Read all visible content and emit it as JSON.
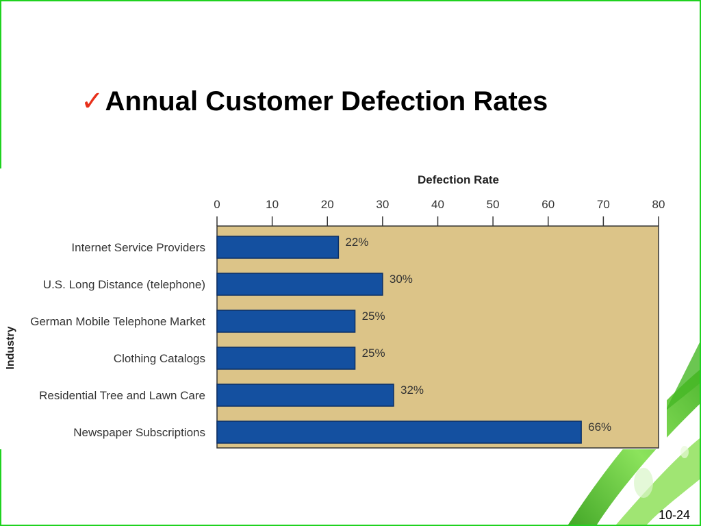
{
  "slide": {
    "title": "Annual Customer Defection Rates",
    "check_icon": "checkmark-icon",
    "number": "10-24"
  },
  "colors": {
    "bar": "#1450a0",
    "plot_bg": "#dcc488",
    "check": "#e8301a",
    "border": "#1fd21f",
    "leaf": "#5ccc2e"
  },
  "chart_data": {
    "type": "bar",
    "orientation": "horizontal",
    "title": "Defection Rate",
    "ylabel": "Industry",
    "categories": [
      "Internet Service Providers",
      "U.S. Long Distance (telephone)",
      "German Mobile Telephone Market",
      "Clothing Catalogs",
      "Residential Tree and Lawn Care",
      "Newspaper Subscriptions"
    ],
    "values": [
      22,
      30,
      25,
      25,
      32,
      66
    ],
    "data_labels": [
      "22%",
      "30%",
      "25%",
      "25%",
      "32%",
      "66%"
    ],
    "xlim": [
      0,
      80
    ],
    "xticks": [
      0,
      10,
      20,
      30,
      40,
      50,
      60,
      70,
      80
    ],
    "axis_position": "top",
    "grid": false,
    "legend": "none"
  }
}
